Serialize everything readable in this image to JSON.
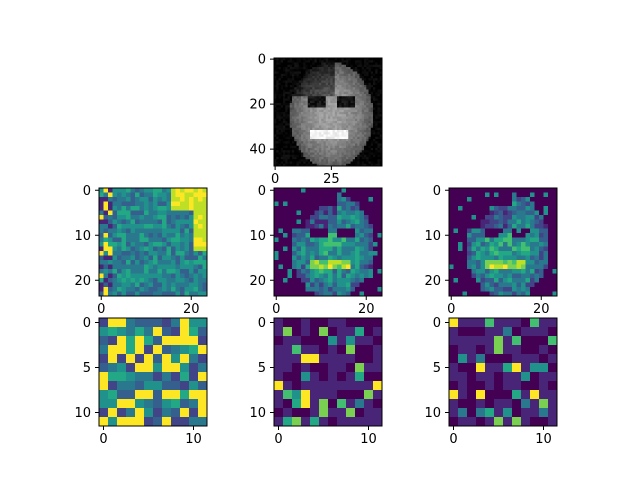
{
  "chart_data": [
    {
      "type": "heatmap",
      "colormap": "gray",
      "content": "grayscale face image",
      "xlim": [
        0,
        48
      ],
      "ylim": [
        48,
        0
      ],
      "xticks": [
        "0",
        "25"
      ],
      "yticks": [
        "0",
        "20",
        "40"
      ],
      "xtick_values": [
        0,
        25
      ],
      "ytick_values": [
        0,
        20,
        40
      ],
      "grid": false
    },
    {
      "type": "heatmap",
      "colormap": "viridis",
      "grid_size": 24,
      "xlim": [
        0,
        24
      ],
      "ylim": [
        24,
        0
      ],
      "xticks": [
        "0",
        "20"
      ],
      "yticks": [
        "0",
        "10",
        "20"
      ],
      "xtick_values": [
        0,
        20
      ],
      "ytick_values": [
        0,
        10,
        20
      ],
      "grid": false
    },
    {
      "type": "heatmap",
      "colormap": "viridis",
      "grid_size": 24,
      "xlim": [
        0,
        24
      ],
      "ylim": [
        24,
        0
      ],
      "xticks": [
        "0",
        "20"
      ],
      "yticks": [
        "0",
        "10",
        "20"
      ],
      "xtick_values": [
        0,
        20
      ],
      "ytick_values": [
        0,
        10,
        20
      ],
      "grid": false
    },
    {
      "type": "heatmap",
      "colormap": "viridis",
      "grid_size": 24,
      "xlim": [
        0,
        24
      ],
      "ylim": [
        24,
        0
      ],
      "xticks": [
        "0",
        "20"
      ],
      "yticks": [
        "0",
        "10",
        "20"
      ],
      "xtick_values": [
        0,
        20
      ],
      "ytick_values": [
        0,
        10,
        20
      ],
      "grid": false
    },
    {
      "type": "heatmap",
      "colormap": "viridis",
      "grid_size": 12,
      "xlim": [
        0,
        12
      ],
      "ylim": [
        12,
        0
      ],
      "xticks": [
        "0",
        "10"
      ],
      "yticks": [
        "0",
        "5",
        "10"
      ],
      "xtick_values": [
        0,
        10
      ],
      "ytick_values": [
        0,
        5,
        10
      ],
      "grid": false
    },
    {
      "type": "heatmap",
      "colormap": "viridis",
      "grid_size": 12,
      "xlim": [
        0,
        12
      ],
      "ylim": [
        12,
        0
      ],
      "xticks": [
        "0",
        "10"
      ],
      "yticks": [
        "0",
        "5",
        "10"
      ],
      "xtick_values": [
        0,
        10
      ],
      "ytick_values": [
        0,
        5,
        10
      ],
      "grid": false
    },
    {
      "type": "heatmap",
      "colormap": "viridis",
      "grid_size": 12,
      "xlim": [
        0,
        12
      ],
      "ylim": [
        12,
        0
      ],
      "xticks": [
        "0",
        "10"
      ],
      "yticks": [
        "0",
        "5",
        "10"
      ],
      "xtick_values": [
        0,
        10
      ],
      "ytick_values": [
        0,
        5,
        10
      ],
      "grid": false
    }
  ]
}
